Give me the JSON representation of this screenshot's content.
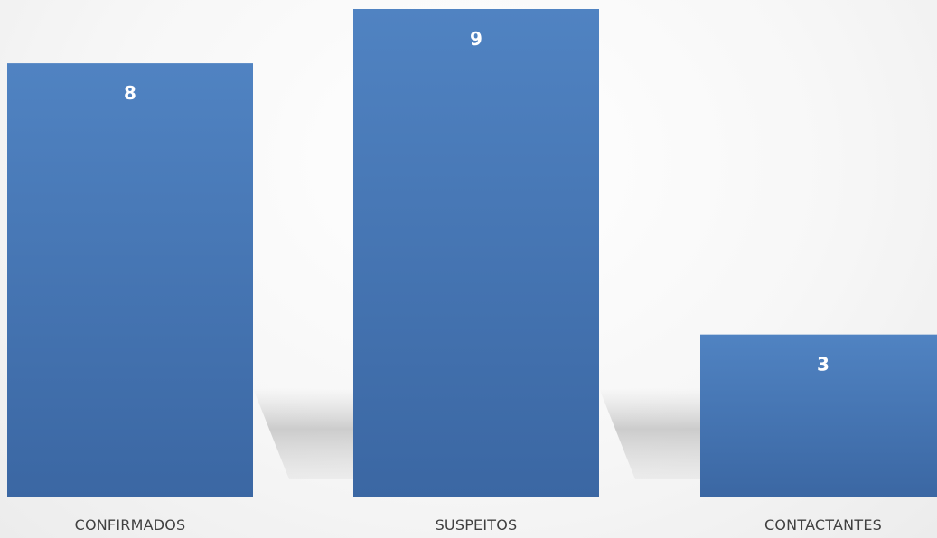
{
  "chart_data": {
    "type": "bar",
    "categories": [
      "CONFIRMADOS",
      "SUSPEITOS",
      "CONTACTANTES"
    ],
    "values": [
      8,
      9,
      3
    ],
    "title": "",
    "xlabel": "",
    "ylabel": "",
    "ylim": [
      0,
      9
    ],
    "data_labels": true,
    "grid": false,
    "legend": "none",
    "bar_color": "#4472C4"
  }
}
